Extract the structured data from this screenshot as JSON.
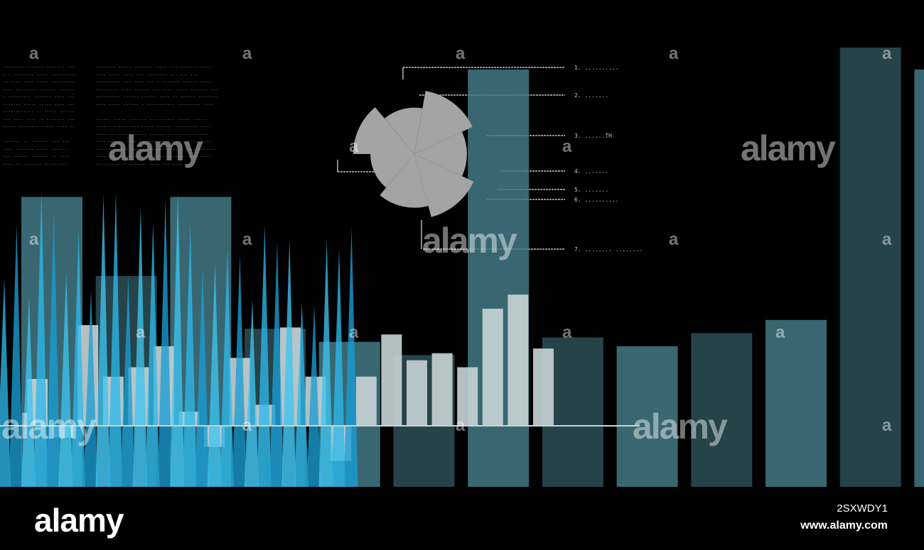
{
  "chart_data": {
    "type": "bar",
    "background": "#000000",
    "tall_bars": {
      "color": "#3f6f7a",
      "values": [
        0.66,
        0.48,
        0.66,
        0.36,
        0.33,
        0.3,
        0.95,
        0.34,
        0.32,
        0.35,
        0.38,
        1.0,
        0.95
      ]
    },
    "white_bars": {
      "color": "#c8d4d6",
      "values": [
        0.2,
        -0.05,
        0.43,
        0.21,
        0.25,
        0.34,
        0.06,
        -0.09,
        0.29,
        0.09,
        0.42,
        0.21,
        -0.15,
        0.21,
        0.39,
        0.28,
        0.31,
        0.25,
        0.5,
        0.56,
        0.33
      ]
    },
    "spikes": {
      "color": "#1aa3d9",
      "values": [
        0.7,
        0.88,
        0.64,
        0.99,
        0.92,
        0.72,
        0.86,
        0.66,
        0.98,
        0.99,
        0.71,
        0.94,
        0.89,
        0.97,
        0.99,
        0.88,
        0.74,
        0.75,
        0.8,
        0.78,
        0.63,
        0.88,
        0.82,
        0.83,
        0.62,
        0.61,
        0.83,
        0.8,
        0.87
      ]
    },
    "pie_segments_deg": [
      {
        "start": -180,
        "end": -130,
        "r": 1.0
      },
      {
        "start": -130,
        "end": -80,
        "r": 0.76
      },
      {
        "start": -80,
        "end": -25,
        "r": 1.05
      },
      {
        "start": -25,
        "end": 25,
        "r": 0.86
      },
      {
        "start": 25,
        "end": 75,
        "r": 1.07
      },
      {
        "start": 75,
        "end": 130,
        "r": 0.88
      },
      {
        "start": 130,
        "end": 180,
        "r": 0.72
      }
    ],
    "pie_color": "#a4a4a4",
    "legend_labels": [
      "1. ..........",
      "2. .......",
      "3. ......TH",
      "4. .......",
      "5. .......",
      "6. ..........",
      "7. ........ ........"
    ]
  },
  "watermark": {
    "word": "alamy",
    "letter": "a"
  },
  "footer": {
    "logo": "alamy",
    "image_id": "2SXWDY1",
    "url": "www.alamy.com"
  }
}
